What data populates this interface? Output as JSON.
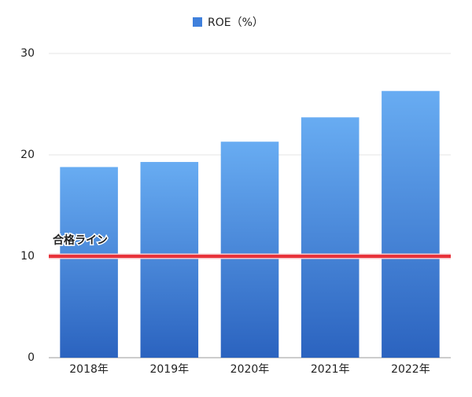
{
  "chart_data": {
    "type": "bar",
    "categories": [
      "2018年",
      "2019年",
      "2020年",
      "2021年",
      "2022年"
    ],
    "series": [
      {
        "name": "ROE（%）",
        "color": "#3f80dc",
        "values": [
          18.8,
          19.3,
          21.3,
          23.7,
          26.3
        ]
      }
    ],
    "ylim": [
      0,
      30
    ],
    "yticks": [
      0,
      10,
      20,
      30
    ],
    "grid": true,
    "legend": "top",
    "reference_line": {
      "value": 10,
      "label": "合格ライン",
      "color": "#e8323a"
    }
  }
}
